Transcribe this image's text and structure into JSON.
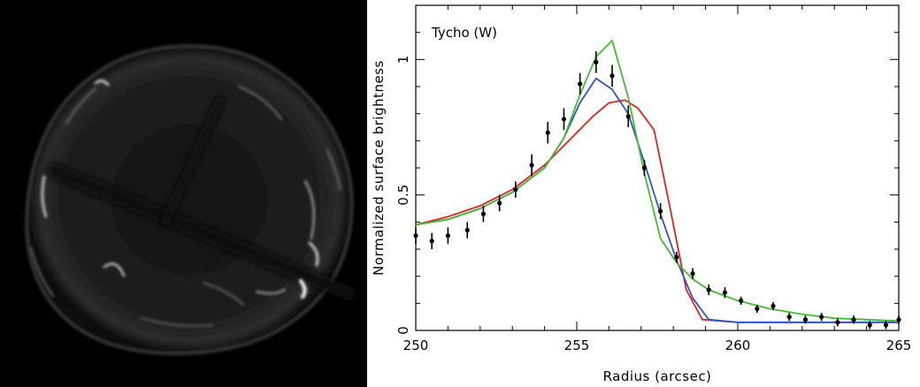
{
  "image_panel": {
    "description_name": "x-ray-remnant-image",
    "background": "#000000"
  },
  "chart_data": {
    "type": "line",
    "annotation": "Tycho (W)",
    "xlabel": "Radius (arcsec)",
    "ylabel": "Normalized surface brightness",
    "xlim": [
      250,
      265
    ],
    "ylim": [
      0,
      1.2
    ],
    "x_ticks": [
      250,
      255,
      260,
      265
    ],
    "y_ticks": [
      0,
      0.5,
      1
    ],
    "y_tick_labels": [
      "0",
      "0.5",
      "1"
    ],
    "grid": false,
    "legend": "none",
    "observed": {
      "x": [
        250.0,
        250.5,
        251.0,
        251.6,
        252.1,
        252.6,
        253.1,
        253.6,
        254.1,
        254.6,
        255.1,
        255.6,
        256.1,
        256.6,
        257.1,
        257.6,
        258.1,
        258.6,
        259.1,
        259.6,
        260.1,
        260.6,
        261.1,
        261.6,
        262.1,
        262.6,
        263.1,
        263.6,
        264.1,
        264.6,
        265.0
      ],
      "y": [
        0.35,
        0.33,
        0.35,
        0.37,
        0.43,
        0.47,
        0.52,
        0.61,
        0.73,
        0.78,
        0.91,
        0.99,
        0.94,
        0.79,
        0.6,
        0.44,
        0.27,
        0.21,
        0.15,
        0.14,
        0.11,
        0.08,
        0.09,
        0.05,
        0.04,
        0.05,
        0.03,
        0.04,
        0.02,
        0.02,
        0.04
      ],
      "yerr": [
        0.03,
        0.03,
        0.03,
        0.03,
        0.03,
        0.03,
        0.03,
        0.04,
        0.04,
        0.04,
        0.04,
        0.04,
        0.04,
        0.04,
        0.03,
        0.03,
        0.02,
        0.02,
        0.02,
        0.02,
        0.015,
        0.015,
        0.015,
        0.015,
        0.015,
        0.015,
        0.015,
        0.015,
        0.015,
        0.015,
        0.015
      ],
      "color": "#000000"
    },
    "series": [
      {
        "color": "#dd2222",
        "x": [
          250,
          251,
          252,
          253,
          254,
          255,
          255.5,
          256,
          256.5,
          256.9,
          257.4,
          257.9,
          258.4,
          258.9,
          260,
          262,
          265
        ],
        "y": [
          0.39,
          0.42,
          0.46,
          0.52,
          0.61,
          0.73,
          0.79,
          0.84,
          0.85,
          0.82,
          0.74,
          0.45,
          0.15,
          0.04,
          0.03,
          0.03,
          0.03
        ]
      },
      {
        "color": "#3355bb",
        "x": [
          250,
          251,
          252,
          253,
          254,
          254.6,
          255.1,
          255.6,
          256.1,
          256.6,
          257.1,
          257.6,
          258.1,
          258.6,
          259.1,
          260,
          262,
          265
        ],
        "y": [
          0.39,
          0.41,
          0.45,
          0.51,
          0.6,
          0.71,
          0.84,
          0.93,
          0.89,
          0.8,
          0.62,
          0.43,
          0.26,
          0.12,
          0.04,
          0.03,
          0.03,
          0.03
        ]
      },
      {
        "color": "#44bb33",
        "x": [
          250,
          251,
          252,
          253,
          254,
          254.6,
          255.1,
          255.6,
          256.1,
          256.6,
          257.1,
          257.6,
          258.1,
          258.6,
          259.1,
          260,
          261,
          262,
          263,
          264,
          265
        ],
        "y": [
          0.39,
          0.41,
          0.45,
          0.51,
          0.6,
          0.71,
          0.87,
          1.01,
          1.07,
          0.86,
          0.58,
          0.34,
          0.25,
          0.19,
          0.15,
          0.11,
          0.08,
          0.06,
          0.045,
          0.04,
          0.035
        ]
      }
    ]
  }
}
